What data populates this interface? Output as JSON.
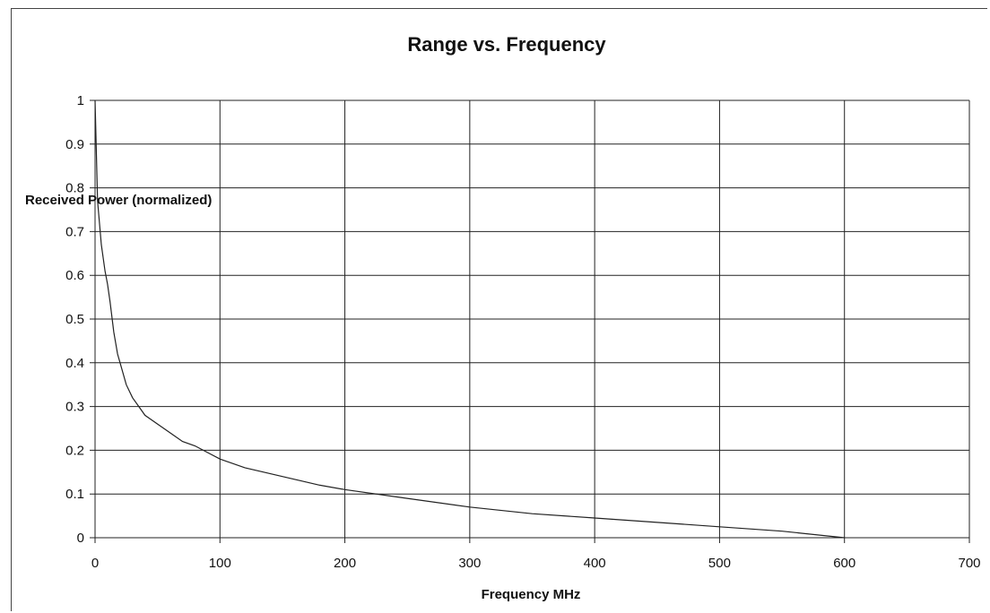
{
  "chart_data": {
    "type": "line",
    "title": "Range vs. Frequency",
    "xlabel": "Frequency MHz",
    "ylabel": "Received Power (normalized)",
    "xlim": [
      0,
      700
    ],
    "ylim": [
      0,
      1
    ],
    "x_ticks": [
      "0",
      "100",
      "200",
      "300",
      "400",
      "500",
      "600",
      "700"
    ],
    "y_ticks": [
      "0",
      "0.1",
      "0.2",
      "0.3",
      "0.4",
      "0.5",
      "0.6",
      "0.7",
      "0.8",
      "0.9",
      "1"
    ],
    "grid": true,
    "legend": "none",
    "colors": {
      "line": "#222222",
      "grid": "#222222"
    },
    "series": [
      {
        "x": [
          0,
          2,
          5,
          8,
          10,
          12,
          15,
          18,
          20,
          25,
          30,
          35,
          40,
          50,
          60,
          70,
          80,
          100,
          120,
          150,
          180,
          200,
          250,
          300,
          350,
          400,
          450,
          500,
          550,
          600
        ],
        "values": [
          1.0,
          0.77,
          0.67,
          0.61,
          0.58,
          0.54,
          0.47,
          0.42,
          0.4,
          0.35,
          0.32,
          0.3,
          0.28,
          0.26,
          0.24,
          0.22,
          0.21,
          0.18,
          0.16,
          0.14,
          0.12,
          0.11,
          0.09,
          0.07,
          0.055,
          0.045,
          0.035,
          0.025,
          0.015,
          0.0
        ]
      }
    ]
  }
}
